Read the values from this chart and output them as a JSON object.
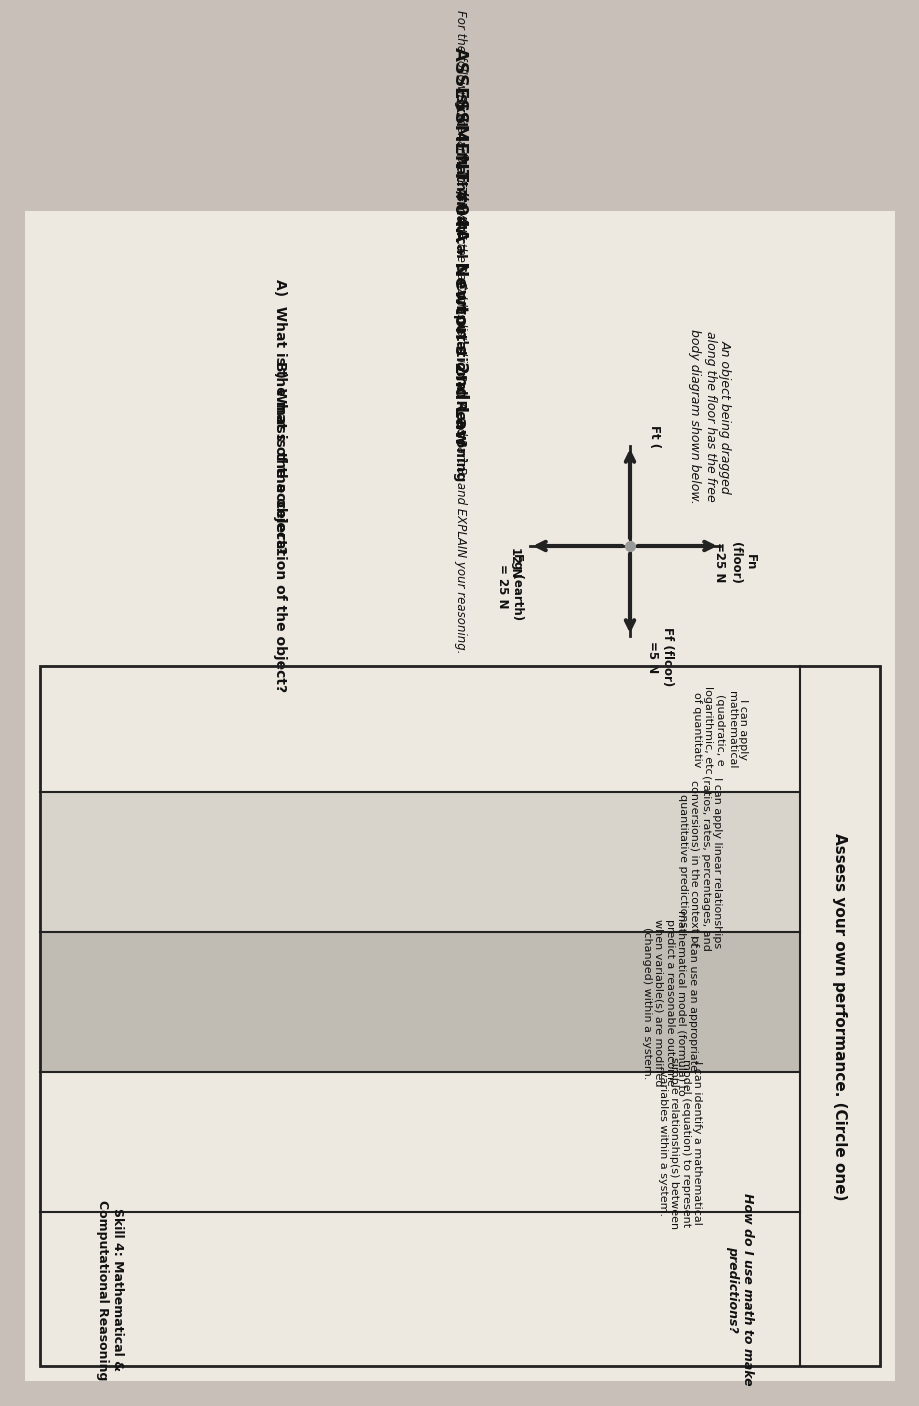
{
  "title": "ASSESSMENT #04A - Newton's 2nd Law",
  "skill_header": "Skill 4: Mathematical & Computational Reasoning",
  "scenario_intro": "For the following scenario, DETERMINE the variables listed in Part A and Part B, and EXPLAIN your reasoning.",
  "scenario_desc": "An object being dragged\nalong the floor has the free\nbody diagram shown below.",
  "part_a": "A)  What is the mass of the object?",
  "part_b": "B)  What is the acceleration of the object?",
  "fn_label": "Fn\n(floor)\n=25 N",
  "ff_label": "Ff (floor)\n=5 N",
  "ft_right_label": "Ft (",
  "ft_down_label": "12 N",
  "fg_label": "Fg (earth)\n= 25 N",
  "assess_header": "Assess your own performance. (Circle one)",
  "col1_italic": "How do I use math to make\npredictions?",
  "col1_bold": "Skill 4: Mathematical &\nComputational Reasoning",
  "col2_text": "I can identify a mathematical\nmodel (equation) to represent\nsimple relationship(s) between\nvariables within a system.",
  "col3_text": "I can use an appropriate\nmathematical model (formula) to\npredict a reasonable outcome\nwhen variable(s) are modified\n(changed) within a system.",
  "col4_text": "I can apply linear relationships\n(ratios, rates, percentages, and\nconversions) in the context of\nquantitative predictions.",
  "col5_text": "I can apply\nmathematical\n(quadratic, e\nlogarithmic, etc\nof quantitativ",
  "bg_color": "#c8c0b8",
  "paper_color": "#ede8e0",
  "text_color": "#111111",
  "border_color": "#222222",
  "col3_bg": "#c0bcb4",
  "col4_bg": "#d8d4cc"
}
